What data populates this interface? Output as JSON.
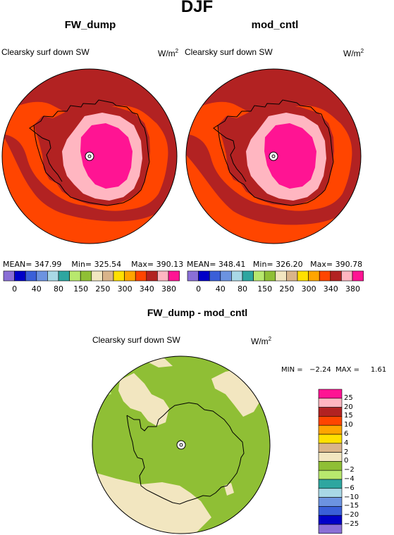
{
  "main_title": "DJF",
  "panels": [
    {
      "title": "FW_dump",
      "field_label": "Clearsky surf down SW",
      "unit_base": "W/m",
      "unit_exp": "2",
      "stats": {
        "mean": "MEAN= 347.99",
        "min": "Min= 325.54",
        "max": "Max= 390.13"
      }
    },
    {
      "title": "mod_cntl",
      "field_label": "Clearsky surf down SW",
      "unit_base": "W/m",
      "unit_exp": "2",
      "stats": {
        "mean": "MEAN= 348.41",
        "min": "Min= 326.20",
        "max": "Max= 390.78"
      }
    }
  ],
  "top_legend": {
    "colors": [
      "#8a6fd6",
      "#0000c8",
      "#3a5fd8",
      "#6c93e0",
      "#a9d8e6",
      "#2ea6a0",
      "#b8e86e",
      "#8fbf35",
      "#f2e6c0",
      "#d9b48a",
      "#ffe000",
      "#ffa500",
      "#ff4500",
      "#b22222",
      "#ffb6c1",
      "#ff1493"
    ],
    "labels": [
      "0",
      "40",
      "80",
      "150",
      "250",
      "300",
      "340",
      "380"
    ],
    "extra_labels": [
      "40",
      "80",
      "150",
      "250",
      "300",
      "340"
    ]
  },
  "diff": {
    "title": "FW_dump - mod_cntl",
    "field_label": "Clearsky surf down SW",
    "unit_base": "W/m",
    "unit_exp": "2",
    "minmax": "MIN =   −2.24  MAX =     1.61",
    "legend_colors": [
      "#ff1493",
      "#ffb6c1",
      "#b22222",
      "#ff4500",
      "#ffa500",
      "#ffe000",
      "#d9b48a",
      "#f2e6c0",
      "#8fbf35",
      "#b8e86e",
      "#2ea6a0",
      "#a9d8e6",
      "#6c93e0",
      "#3a5fd8",
      "#0000c8",
      "#8a6fd6"
    ],
    "legend_labels": [
      "25",
      "20",
      "15",
      "10",
      "6",
      "4",
      "2",
      "0",
      "−2",
      "−4",
      "−6",
      "−10",
      "−15",
      "−20",
      "−25"
    ]
  },
  "colors": {
    "outer_ring": "#b22222",
    "mid_band": "#ff4500",
    "inner_pink": "#ffb6c1",
    "core_magenta": "#ff1493",
    "diff_base": "#8fbf35",
    "diff_patch": "#f2e6c0"
  }
}
